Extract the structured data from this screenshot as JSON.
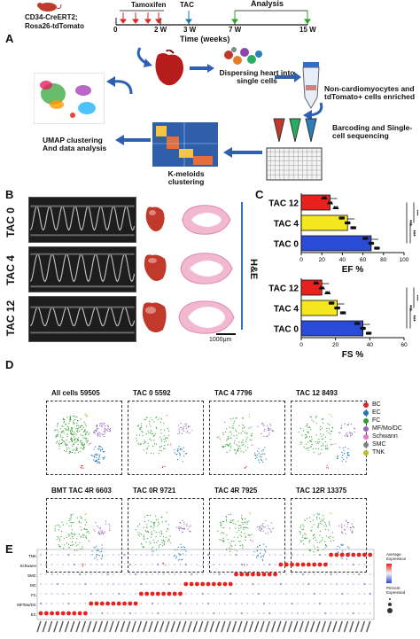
{
  "panels": {
    "a": "A",
    "b": "B",
    "c": "C",
    "d": "D",
    "e": "E"
  },
  "panel_a": {
    "mouse_line1": "CD34-CreERT2;",
    "mouse_line2": "Rosa26-tdTomato",
    "tamoxifen": "Tamoxifen",
    "tac": "TAC",
    "analysis": "Analysis",
    "ticks": [
      "0",
      "2 W",
      "3 W",
      "7 W",
      "15 W"
    ],
    "time_label": "Time (weeks)",
    "step_dispersing": "Dispersing heart into single cells",
    "step_enriched": "Non-cardiomyocytes and tdTomato+ cells enriched",
    "step_barcoding": "Barcoding and Single-cell sequencing",
    "step_kmeloids": "K-meloids clustering",
    "step_umap": "UMAP clustering And data analysis"
  },
  "panel_b": {
    "rows": [
      "TAC 0",
      "TAC 4",
      "TAC 12"
    ],
    "he_label": "H&E",
    "scale_bar": "1000μm"
  },
  "chart_data": [
    {
      "type": "bar",
      "categories": [
        "TAC 12",
        "TAC 4",
        "TAC 0"
      ],
      "values": [
        28,
        45,
        68
      ],
      "xlabel": "EF %",
      "xlim": [
        0,
        100
      ],
      "xticks": [
        "0",
        "20",
        "40",
        "60",
        "80",
        "100"
      ],
      "colors": [
        "#e8211d",
        "#f5e71d",
        "#2a4bd7"
      ],
      "significance": [
        "***",
        "***",
        "***"
      ]
    },
    {
      "type": "bar",
      "categories": [
        "TAC 12",
        "TAC 4",
        "TAC 0"
      ],
      "values": [
        12,
        21,
        36
      ],
      "xlabel": "FS %",
      "xlim": [
        0,
        60
      ],
      "xticks": [
        "0",
        "20",
        "40",
        "60"
      ],
      "colors": [
        "#e8211d",
        "#f5e71d",
        "#2a4bd7"
      ],
      "significance": [
        "***",
        "***",
        "***"
      ]
    }
  ],
  "panel_d": {
    "titles": [
      "All cells 59505",
      "TAC 0 5592",
      "TAC 4 7796",
      "TAC 12 8493",
      "BMT TAC 4R 6603",
      "TAC 0R 9721",
      "TAC 4R 7925",
      "TAC 12R 13375"
    ],
    "legend": [
      {
        "label": "BC",
        "color": "#d62728"
      },
      {
        "label": "EC",
        "color": "#1f77b4"
      },
      {
        "label": "FC",
        "color": "#2ca02c"
      },
      {
        "label": "MF/Mo/DC",
        "color": "#9467bd"
      },
      {
        "label": "Schwann",
        "color": "#e377c2"
      },
      {
        "label": "SMC",
        "color": "#7f7f7f"
      },
      {
        "label": "TNK",
        "color": "#bcbd22"
      }
    ]
  },
  "panel_e": {
    "rows": [
      "TNK",
      "Schwann",
      "SMC",
      "MC",
      "FC",
      "MF/Mo/DC",
      "EC"
    ],
    "legend_title": "Average Expression",
    "legend_percent": "Percent Expressed"
  }
}
